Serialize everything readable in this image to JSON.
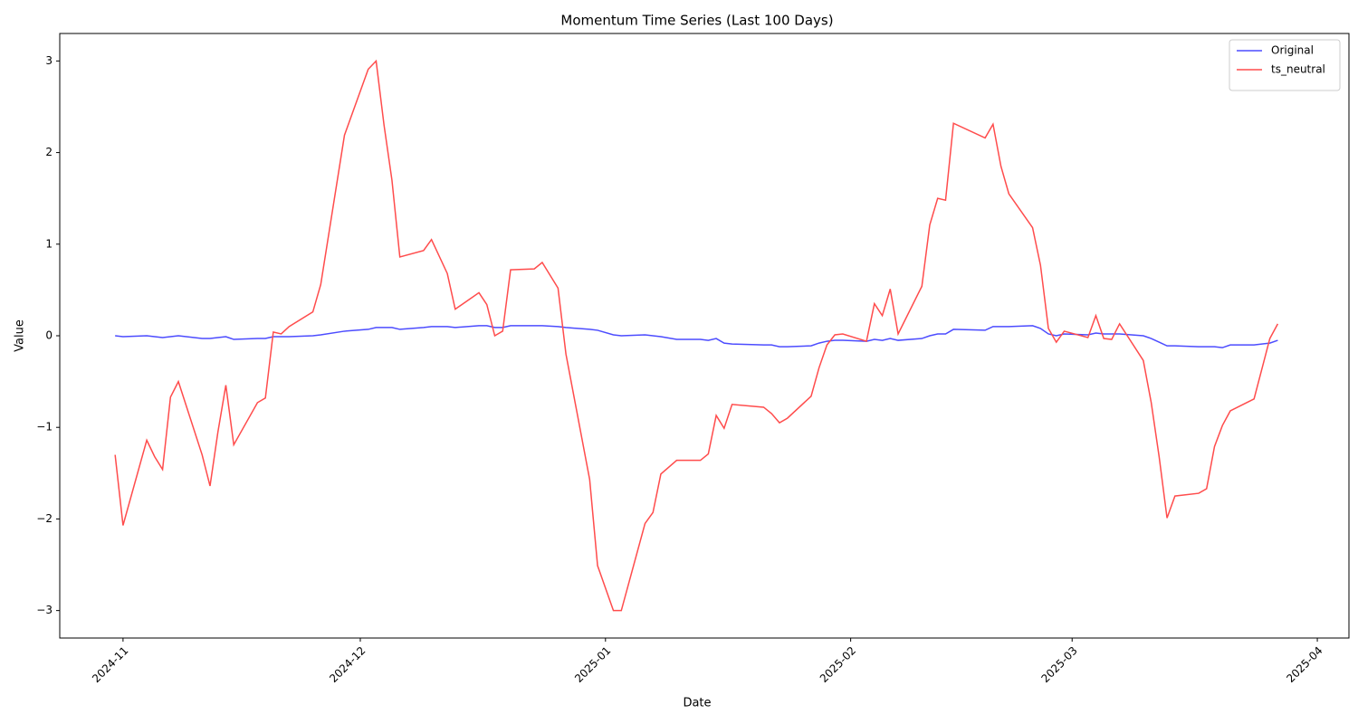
{
  "chart_data": {
    "type": "line",
    "title": "Momentum Time Series (Last 100 Days)",
    "x_label": "Date",
    "y_label": "Value",
    "x": [
      "2024-10-31",
      "2024-11-01",
      "2024-11-04",
      "2024-11-05",
      "2024-11-06",
      "2024-11-07",
      "2024-11-08",
      "2024-11-11",
      "2024-11-12",
      "2024-11-13",
      "2024-11-14",
      "2024-11-15",
      "2024-11-18",
      "2024-11-19",
      "2024-11-20",
      "2024-11-21",
      "2024-11-22",
      "2024-11-25",
      "2024-11-26",
      "2024-11-29",
      "2024-12-02",
      "2024-12-03",
      "2024-12-04",
      "2024-12-05",
      "2024-12-06",
      "2024-12-09",
      "2024-12-10",
      "2024-12-12",
      "2024-12-13",
      "2024-12-16",
      "2024-12-17",
      "2024-12-18",
      "2024-12-19",
      "2024-12-20",
      "2024-12-23",
      "2024-12-24",
      "2024-12-26",
      "2024-12-27",
      "2024-12-30",
      "2024-12-31",
      "2025-01-02",
      "2025-01-03",
      "2025-01-06",
      "2025-01-07",
      "2025-01-08",
      "2025-01-10",
      "2025-01-13",
      "2025-01-14",
      "2025-01-15",
      "2025-01-16",
      "2025-01-17",
      "2025-01-21",
      "2025-01-22",
      "2025-01-23",
      "2025-01-24",
      "2025-01-27",
      "2025-01-28",
      "2025-01-29",
      "2025-01-30",
      "2025-01-31",
      "2025-02-03",
      "2025-02-04",
      "2025-02-05",
      "2025-02-06",
      "2025-02-07",
      "2025-02-10",
      "2025-02-11",
      "2025-02-12",
      "2025-02-13",
      "2025-02-14",
      "2025-02-18",
      "2025-02-19",
      "2025-02-20",
      "2025-02-21",
      "2025-02-24",
      "2025-02-25",
      "2025-02-26",
      "2025-02-27",
      "2025-02-28",
      "2025-03-03",
      "2025-03-04",
      "2025-03-05",
      "2025-03-06",
      "2025-03-07",
      "2025-03-10",
      "2025-03-11",
      "2025-03-12",
      "2025-03-13",
      "2025-03-14",
      "2025-03-17",
      "2025-03-18",
      "2025-03-19",
      "2025-03-20",
      "2025-03-21",
      "2025-03-24",
      "2025-03-26",
      "2025-03-27"
    ],
    "series": [
      {
        "name": "Original",
        "color": "#4c4cff",
        "values": [
          0.0,
          -0.01,
          0.0,
          -0.01,
          -0.02,
          -0.01,
          0.0,
          -0.03,
          -0.03,
          -0.02,
          -0.01,
          -0.04,
          -0.03,
          -0.03,
          -0.01,
          -0.01,
          -0.01,
          0.0,
          0.01,
          0.05,
          0.07,
          0.09,
          0.09,
          0.09,
          0.07,
          0.09,
          0.1,
          0.1,
          0.09,
          0.11,
          0.11,
          0.09,
          0.09,
          0.11,
          0.11,
          0.11,
          0.1,
          0.09,
          0.07,
          0.06,
          0.01,
          0.0,
          0.01,
          0.0,
          -0.01,
          -0.04,
          -0.04,
          -0.05,
          -0.03,
          -0.08,
          -0.09,
          -0.1,
          -0.1,
          -0.12,
          -0.12,
          -0.11,
          -0.08,
          -0.06,
          -0.05,
          -0.05,
          -0.06,
          -0.04,
          -0.05,
          -0.03,
          -0.05,
          -0.03,
          0.0,
          0.02,
          0.02,
          0.07,
          0.06,
          0.1,
          0.1,
          0.1,
          0.11,
          0.08,
          0.02,
          0.0,
          0.02,
          0.01,
          0.03,
          0.02,
          0.02,
          0.02,
          0.0,
          -0.03,
          -0.07,
          -0.11,
          -0.11,
          -0.12,
          -0.12,
          -0.12,
          -0.13,
          -0.1,
          -0.1,
          -0.08,
          -0.05
        ]
      },
      {
        "name": "ts_neutral",
        "color": "#ff4c4c",
        "values": [
          -1.3,
          -2.07,
          -1.14,
          -1.32,
          -1.46,
          -0.67,
          -0.5,
          -1.3,
          -1.64,
          -1.05,
          -0.54,
          -1.19,
          -0.73,
          -0.68,
          0.04,
          0.02,
          0.1,
          0.26,
          0.56,
          2.19,
          2.91,
          3.0,
          2.3,
          1.7,
          0.86,
          0.93,
          1.05,
          0.68,
          0.29,
          0.47,
          0.34,
          0.0,
          0.05,
          0.72,
          0.73,
          0.8,
          0.52,
          -0.2,
          -1.57,
          -2.51,
          -3.0,
          -3.0,
          -2.05,
          -1.93,
          -1.51,
          -1.36,
          -1.36,
          -1.29,
          -0.87,
          -1.01,
          -0.75,
          -0.78,
          -0.85,
          -0.95,
          -0.9,
          -0.66,
          -0.35,
          -0.1,
          0.01,
          0.02,
          -0.06,
          0.35,
          0.22,
          0.51,
          0.02,
          0.54,
          1.21,
          1.5,
          1.48,
          2.32,
          2.16,
          2.31,
          1.85,
          1.55,
          1.18,
          0.77,
          0.08,
          -0.07,
          0.05,
          -0.02,
          0.22,
          -0.03,
          -0.04,
          0.13,
          -0.27,
          -0.73,
          -1.32,
          -1.99,
          -1.75,
          -1.72,
          -1.67,
          -1.21,
          -0.98,
          -0.82,
          -0.69,
          -0.03,
          0.13
        ]
      }
    ],
    "xlim": [
      "2024-10-24",
      "2025-04-05"
    ],
    "xticks": [
      {
        "value": "2024-11-01",
        "label": "2024-11"
      },
      {
        "value": "2024-12-01",
        "label": "2024-12"
      },
      {
        "value": "2025-01-01",
        "label": "2025-01"
      },
      {
        "value": "2025-02-01",
        "label": "2025-02"
      },
      {
        "value": "2025-03-01",
        "label": "2025-03"
      },
      {
        "value": "2025-04-01",
        "label": "2025-04"
      }
    ],
    "ylim": [
      -3.3,
      3.3
    ],
    "yticks": [
      {
        "value": -3,
        "label": "−3"
      },
      {
        "value": -2,
        "label": "−2"
      },
      {
        "value": -1,
        "label": "−1"
      },
      0,
      1,
      2,
      3
    ],
    "grid": false,
    "legend": "upper right"
  }
}
